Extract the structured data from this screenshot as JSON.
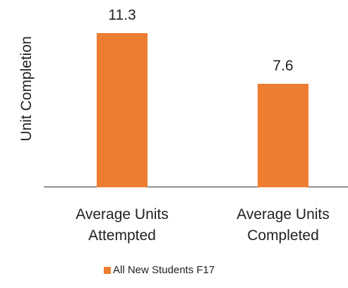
{
  "chart_data": {
    "type": "bar",
    "y_label": "Unit Completion",
    "categories": [
      "Average Units Attempted",
      "Average Units Completed"
    ],
    "series": [
      {
        "name": "All New Students F17",
        "color": "#ED7D31",
        "values": [
          11.3,
          7.6
        ]
      }
    ],
    "ylim": [
      0,
      12
    ],
    "legend": "bottom"
  }
}
